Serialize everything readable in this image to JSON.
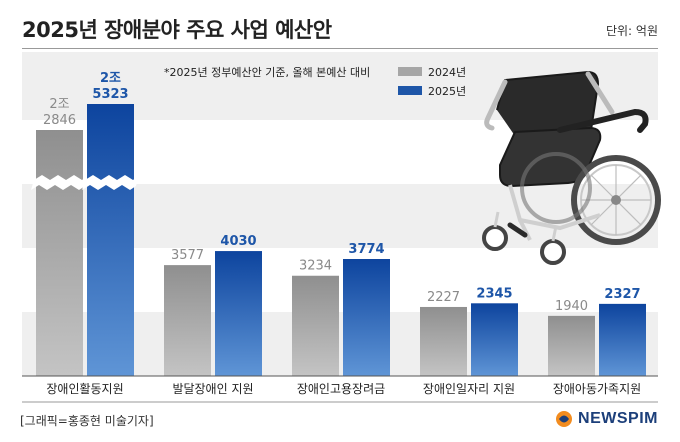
{
  "title": "2025년 장애분야 주요 사업 예산안",
  "unit": "단위: 억원",
  "note": "*2025년 정부예산안 기준, 올해 본예산 대비",
  "credit": "[그래픽=홍종현 미술기자]",
  "logo": "NEWSPIM",
  "colors": {
    "series_2024": "#a6a6a6",
    "series_2025": "#1e56a8",
    "band": "#efefef",
    "value_2024": "#8a8a8a",
    "value_2025": "#1e56a8"
  },
  "chart_data": {
    "type": "bar",
    "categories": [
      "장애인활동지원",
      "발달장애인 지원",
      "장애인고용장려금",
      "장애인일자리 지원",
      "장애아동가족지원"
    ],
    "series": [
      {
        "name": "2024년",
        "values": [
          22846,
          3577,
          3234,
          2227,
          1940
        ],
        "labels": [
          "2조\n2846",
          "3577",
          "3234",
          "2227",
          "1940"
        ]
      },
      {
        "name": "2025년",
        "values": [
          25323,
          4030,
          3774,
          2345,
          2327
        ],
        "labels": [
          "2조\n5323",
          "4030",
          "3774",
          "2345",
          "2327"
        ]
      }
    ],
    "axis_break": true,
    "grid": false,
    "legend_position": "top-center"
  },
  "illustration": "wheelchair-icon"
}
